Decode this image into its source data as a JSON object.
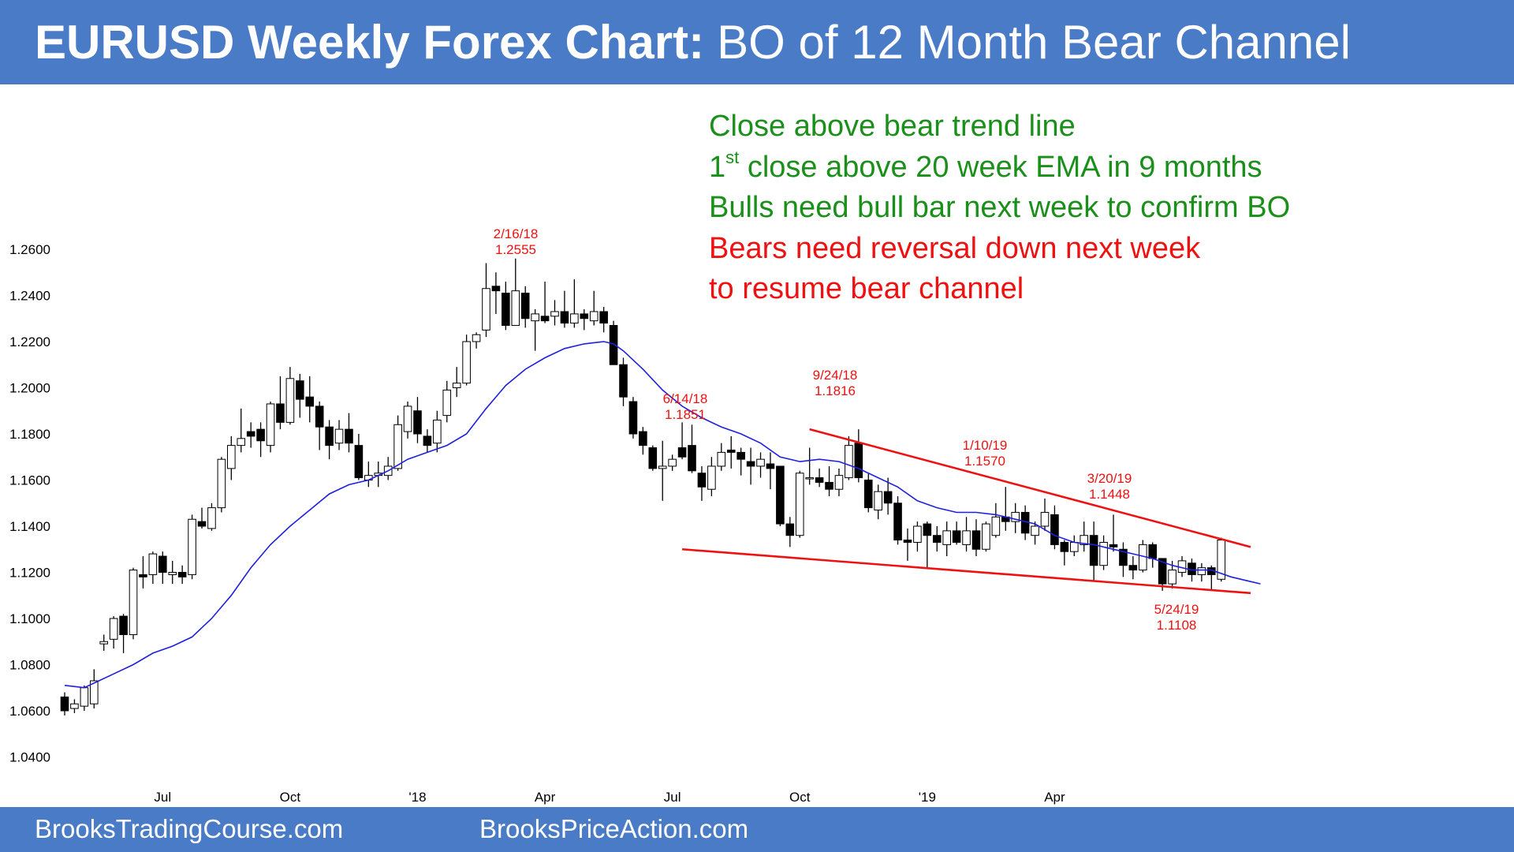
{
  "header": {
    "title_bold": "EURUSD Weekly Forex Chart:",
    "title_rest": "BO of 12 Month Bear Channel"
  },
  "footer": {
    "left": "BrooksTradingCourse.com",
    "right": "BrooksPriceAction.com"
  },
  "notes": {
    "line1": "Close above bear trend line",
    "line2_prefix": "1",
    "line2_sup": "st",
    "line2_rest": " close above 20 week EMA in 9 months",
    "line3": "Bulls need bull bar next week to confirm BO",
    "line4": "Bears need reversal down next week",
    "line5": "to resume bear channel"
  },
  "colors": {
    "header_bg": "#4a7bc6",
    "bull_body": "#ffffff",
    "bear_body": "#000000",
    "ema": "#1f1fe0",
    "trend_lines": "#ee1111",
    "annotations": "#ee1111",
    "notes_green": "#1a8f1a",
    "notes_red": "#ee1111"
  },
  "chart_data": {
    "type": "candlestick",
    "title": "",
    "xlabel": "",
    "ylabel": "",
    "ylim": [
      1.03,
      1.275
    ],
    "yticks": [
      "1.0400",
      "1.0600",
      "1.0800",
      "1.1000",
      "1.1200",
      "1.1400",
      "1.1600",
      "1.1800",
      "1.2000",
      "1.2200",
      "1.2400",
      "1.2600"
    ],
    "grid": false,
    "x_ticks": [
      {
        "week": 10,
        "label": "Jul"
      },
      {
        "week": 23,
        "label": "Oct"
      },
      {
        "week": 36,
        "label": "'18"
      },
      {
        "week": 49,
        "label": "Apr"
      },
      {
        "week": 62,
        "label": "Jul"
      },
      {
        "week": 75,
        "label": "Oct"
      },
      {
        "week": 88,
        "label": "'19"
      },
      {
        "week": 101,
        "label": "Apr"
      }
    ],
    "ohlc": [
      [
        1.066,
        1.068,
        1.058,
        1.06
      ],
      [
        1.061,
        1.065,
        1.059,
        1.063
      ],
      [
        1.062,
        1.071,
        1.06,
        1.07
      ],
      [
        1.063,
        1.078,
        1.061,
        1.073
      ],
      [
        1.089,
        1.093,
        1.086,
        1.09
      ],
      [
        1.091,
        1.101,
        1.087,
        1.1
      ],
      [
        1.101,
        1.102,
        1.085,
        1.093
      ],
      [
        1.093,
        1.122,
        1.091,
        1.121
      ],
      [
        1.119,
        1.127,
        1.113,
        1.118
      ],
      [
        1.119,
        1.129,
        1.115,
        1.128
      ],
      [
        1.127,
        1.129,
        1.115,
        1.12
      ],
      [
        1.119,
        1.125,
        1.115,
        1.12
      ],
      [
        1.12,
        1.123,
        1.115,
        1.118
      ],
      [
        1.119,
        1.145,
        1.117,
        1.143
      ],
      [
        1.142,
        1.148,
        1.139,
        1.14
      ],
      [
        1.139,
        1.15,
        1.138,
        1.148
      ],
      [
        1.148,
        1.17,
        1.146,
        1.169
      ],
      [
        1.165,
        1.179,
        1.16,
        1.175
      ],
      [
        1.175,
        1.191,
        1.172,
        1.178
      ],
      [
        1.181,
        1.185,
        1.174,
        1.179
      ],
      [
        1.182,
        1.185,
        1.17,
        1.177
      ],
      [
        1.175,
        1.194,
        1.172,
        1.193
      ],
      [
        1.193,
        1.205,
        1.182,
        1.185
      ],
      [
        1.185,
        1.209,
        1.184,
        1.204
      ],
      [
        1.203,
        1.206,
        1.187,
        1.195
      ],
      [
        1.196,
        1.205,
        1.185,
        1.192
      ],
      [
        1.192,
        1.194,
        1.173,
        1.183
      ],
      [
        1.183,
        1.186,
        1.169,
        1.175
      ],
      [
        1.176,
        1.186,
        1.173,
        1.182
      ],
      [
        1.182,
        1.189,
        1.172,
        1.176
      ],
      [
        1.175,
        1.18,
        1.16,
        1.161
      ],
      [
        1.16,
        1.168,
        1.157,
        1.162
      ],
      [
        1.162,
        1.168,
        1.157,
        1.163
      ],
      [
        1.162,
        1.17,
        1.16,
        1.166
      ],
      [
        1.165,
        1.188,
        1.164,
        1.184
      ],
      [
        1.181,
        1.194,
        1.178,
        1.192
      ],
      [
        1.19,
        1.196,
        1.176,
        1.18
      ],
      [
        1.179,
        1.182,
        1.172,
        1.175
      ],
      [
        1.176,
        1.19,
        1.172,
        1.186
      ],
      [
        1.188,
        1.203,
        1.185,
        1.199
      ],
      [
        1.2,
        1.209,
        1.196,
        1.202
      ],
      [
        1.202,
        1.223,
        1.201,
        1.22
      ],
      [
        1.22,
        1.224,
        1.217,
        1.223
      ],
      [
        1.225,
        1.254,
        1.222,
        1.243
      ],
      [
        1.244,
        1.25,
        1.232,
        1.242
      ],
      [
        1.241,
        1.246,
        1.225,
        1.227
      ],
      [
        1.227,
        1.256,
        1.227,
        1.242
      ],
      [
        1.241,
        1.244,
        1.226,
        1.23
      ],
      [
        1.229,
        1.234,
        1.216,
        1.232
      ],
      [
        1.231,
        1.246,
        1.228,
        1.229
      ],
      [
        1.231,
        1.238,
        1.227,
        1.233
      ],
      [
        1.233,
        1.242,
        1.226,
        1.228
      ],
      [
        1.228,
        1.247,
        1.226,
        1.232
      ],
      [
        1.232,
        1.234,
        1.225,
        1.23
      ],
      [
        1.229,
        1.242,
        1.227,
        1.233
      ],
      [
        1.233,
        1.235,
        1.224,
        1.228
      ],
      [
        1.227,
        1.229,
        1.21,
        1.21
      ],
      [
        1.21,
        1.213,
        1.192,
        1.196
      ],
      [
        1.194,
        1.196,
        1.178,
        1.18
      ],
      [
        1.181,
        1.183,
        1.171,
        1.175
      ],
      [
        1.174,
        1.175,
        1.164,
        1.165
      ],
      [
        1.165,
        1.177,
        1.151,
        1.166
      ],
      [
        1.166,
        1.171,
        1.164,
        1.169
      ],
      [
        1.174,
        1.185,
        1.169,
        1.17
      ],
      [
        1.175,
        1.184,
        1.163,
        1.164
      ],
      [
        1.163,
        1.166,
        1.151,
        1.157
      ],
      [
        1.156,
        1.17,
        1.153,
        1.166
      ],
      [
        1.166,
        1.176,
        1.164,
        1.172
      ],
      [
        1.173,
        1.179,
        1.165,
        1.172
      ],
      [
        1.172,
        1.174,
        1.162,
        1.169
      ],
      [
        1.168,
        1.174,
        1.158,
        1.166
      ],
      [
        1.166,
        1.172,
        1.161,
        1.169
      ],
      [
        1.167,
        1.172,
        1.156,
        1.165
      ],
      [
        1.166,
        1.166,
        1.14,
        1.141
      ],
      [
        1.141,
        1.144,
        1.131,
        1.136
      ],
      [
        1.136,
        1.164,
        1.135,
        1.163
      ],
      [
        1.161,
        1.174,
        1.158,
        1.161
      ],
      [
        1.161,
        1.165,
        1.157,
        1.159
      ],
      [
        1.159,
        1.166,
        1.153,
        1.156
      ],
      [
        1.156,
        1.165,
        1.153,
        1.162
      ],
      [
        1.161,
        1.179,
        1.16,
        1.175
      ],
      [
        1.176,
        1.182,
        1.159,
        1.161
      ],
      [
        1.16,
        1.163,
        1.146,
        1.148
      ],
      [
        1.147,
        1.158,
        1.143,
        1.155
      ],
      [
        1.155,
        1.161,
        1.145,
        1.15
      ],
      [
        1.15,
        1.153,
        1.132,
        1.134
      ],
      [
        1.134,
        1.139,
        1.125,
        1.133
      ],
      [
        1.133,
        1.142,
        1.129,
        1.14
      ],
      [
        1.141,
        1.142,
        1.122,
        1.136
      ],
      [
        1.136,
        1.14,
        1.129,
        1.133
      ],
      [
        1.132,
        1.142,
        1.127,
        1.138
      ],
      [
        1.138,
        1.142,
        1.132,
        1.133
      ],
      [
        1.132,
        1.144,
        1.129,
        1.138
      ],
      [
        1.138,
        1.143,
        1.127,
        1.13
      ],
      [
        1.13,
        1.142,
        1.129,
        1.141
      ],
      [
        1.136,
        1.15,
        1.135,
        1.144
      ],
      [
        1.144,
        1.157,
        1.138,
        1.142
      ],
      [
        1.142,
        1.15,
        1.137,
        1.146
      ],
      [
        1.146,
        1.149,
        1.134,
        1.137
      ],
      [
        1.136,
        1.142,
        1.132,
        1.14
      ],
      [
        1.14,
        1.152,
        1.138,
        1.146
      ],
      [
        1.145,
        1.149,
        1.13,
        1.132
      ],
      [
        1.133,
        1.134,
        1.123,
        1.129
      ],
      [
        1.129,
        1.136,
        1.127,
        1.133
      ],
      [
        1.132,
        1.142,
        1.129,
        1.136
      ],
      [
        1.136,
        1.142,
        1.116,
        1.123
      ],
      [
        1.123,
        1.136,
        1.121,
        1.133
      ],
      [
        1.132,
        1.145,
        1.129,
        1.131
      ],
      [
        1.13,
        1.133,
        1.118,
        1.123
      ],
      [
        1.123,
        1.127,
        1.117,
        1.121
      ],
      [
        1.121,
        1.134,
        1.12,
        1.132
      ],
      [
        1.132,
        1.133,
        1.122,
        1.126
      ],
      [
        1.126,
        1.126,
        1.112,
        1.115
      ],
      [
        1.115,
        1.125,
        1.113,
        1.121
      ],
      [
        1.12,
        1.127,
        1.118,
        1.125
      ],
      [
        1.124,
        1.126,
        1.116,
        1.119
      ],
      [
        1.119,
        1.124,
        1.116,
        1.122
      ],
      [
        1.122,
        1.123,
        1.112,
        1.119
      ],
      [
        1.117,
        1.135,
        1.116,
        1.134
      ]
    ],
    "ema": [
      [
        0,
        1.071
      ],
      [
        2,
        1.07
      ],
      [
        3,
        1.072
      ],
      [
        5,
        1.076
      ],
      [
        7,
        1.08
      ],
      [
        9,
        1.085
      ],
      [
        11,
        1.088
      ],
      [
        13,
        1.092
      ],
      [
        15,
        1.1
      ],
      [
        17,
        1.11
      ],
      [
        19,
        1.122
      ],
      [
        21,
        1.132
      ],
      [
        23,
        1.14
      ],
      [
        25,
        1.147
      ],
      [
        27,
        1.154
      ],
      [
        29,
        1.158
      ],
      [
        31,
        1.16
      ],
      [
        33,
        1.164
      ],
      [
        35,
        1.169
      ],
      [
        37,
        1.172
      ],
      [
        39,
        1.175
      ],
      [
        41,
        1.18
      ],
      [
        43,
        1.191
      ],
      [
        45,
        1.201
      ],
      [
        47,
        1.208
      ],
      [
        49,
        1.213
      ],
      [
        51,
        1.217
      ],
      [
        53,
        1.219
      ],
      [
        55,
        1.22
      ],
      [
        56,
        1.219
      ],
      [
        57,
        1.216
      ],
      [
        59,
        1.208
      ],
      [
        61,
        1.199
      ],
      [
        63,
        1.192
      ],
      [
        65,
        1.187
      ],
      [
        67,
        1.183
      ],
      [
        69,
        1.18
      ],
      [
        71,
        1.176
      ],
      [
        73,
        1.17
      ],
      [
        75,
        1.168
      ],
      [
        77,
        1.169
      ],
      [
        79,
        1.168
      ],
      [
        81,
        1.165
      ],
      [
        83,
        1.161
      ],
      [
        85,
        1.157
      ],
      [
        87,
        1.151
      ],
      [
        89,
        1.148
      ],
      [
        91,
        1.146
      ],
      [
        93,
        1.146
      ],
      [
        95,
        1.145
      ],
      [
        97,
        1.143
      ],
      [
        99,
        1.141
      ],
      [
        101,
        1.136
      ],
      [
        103,
        1.133
      ],
      [
        105,
        1.132
      ],
      [
        107,
        1.13
      ],
      [
        109,
        1.128
      ],
      [
        111,
        1.126
      ],
      [
        113,
        1.123
      ],
      [
        115,
        1.121
      ],
      [
        117,
        1.121
      ],
      [
        119,
        1.118
      ],
      [
        121,
        1.116
      ],
      [
        122,
        1.115
      ]
    ],
    "trend_lines": [
      {
        "from": [
          76,
          1.182
        ],
        "to": [
          121,
          1.131
        ]
      },
      {
        "from": [
          63,
          1.13
        ],
        "to": [
          121,
          1.111
        ]
      }
    ],
    "annotations": [
      {
        "date": "2/16/18",
        "price": "1.2555",
        "week": 46
      },
      {
        "date": "6/14/18",
        "price": "1.1851",
        "week": 63
      },
      {
        "date": "9/24/18",
        "price": "1.1816",
        "week": 78
      },
      {
        "date": "1/10/19",
        "price": "1.1570",
        "week": 102
      },
      {
        "date": "3/20/19",
        "price": "1.1448",
        "week": 115
      },
      {
        "date": "5/24/19",
        "price": "1.1108",
        "week": 120
      }
    ]
  }
}
